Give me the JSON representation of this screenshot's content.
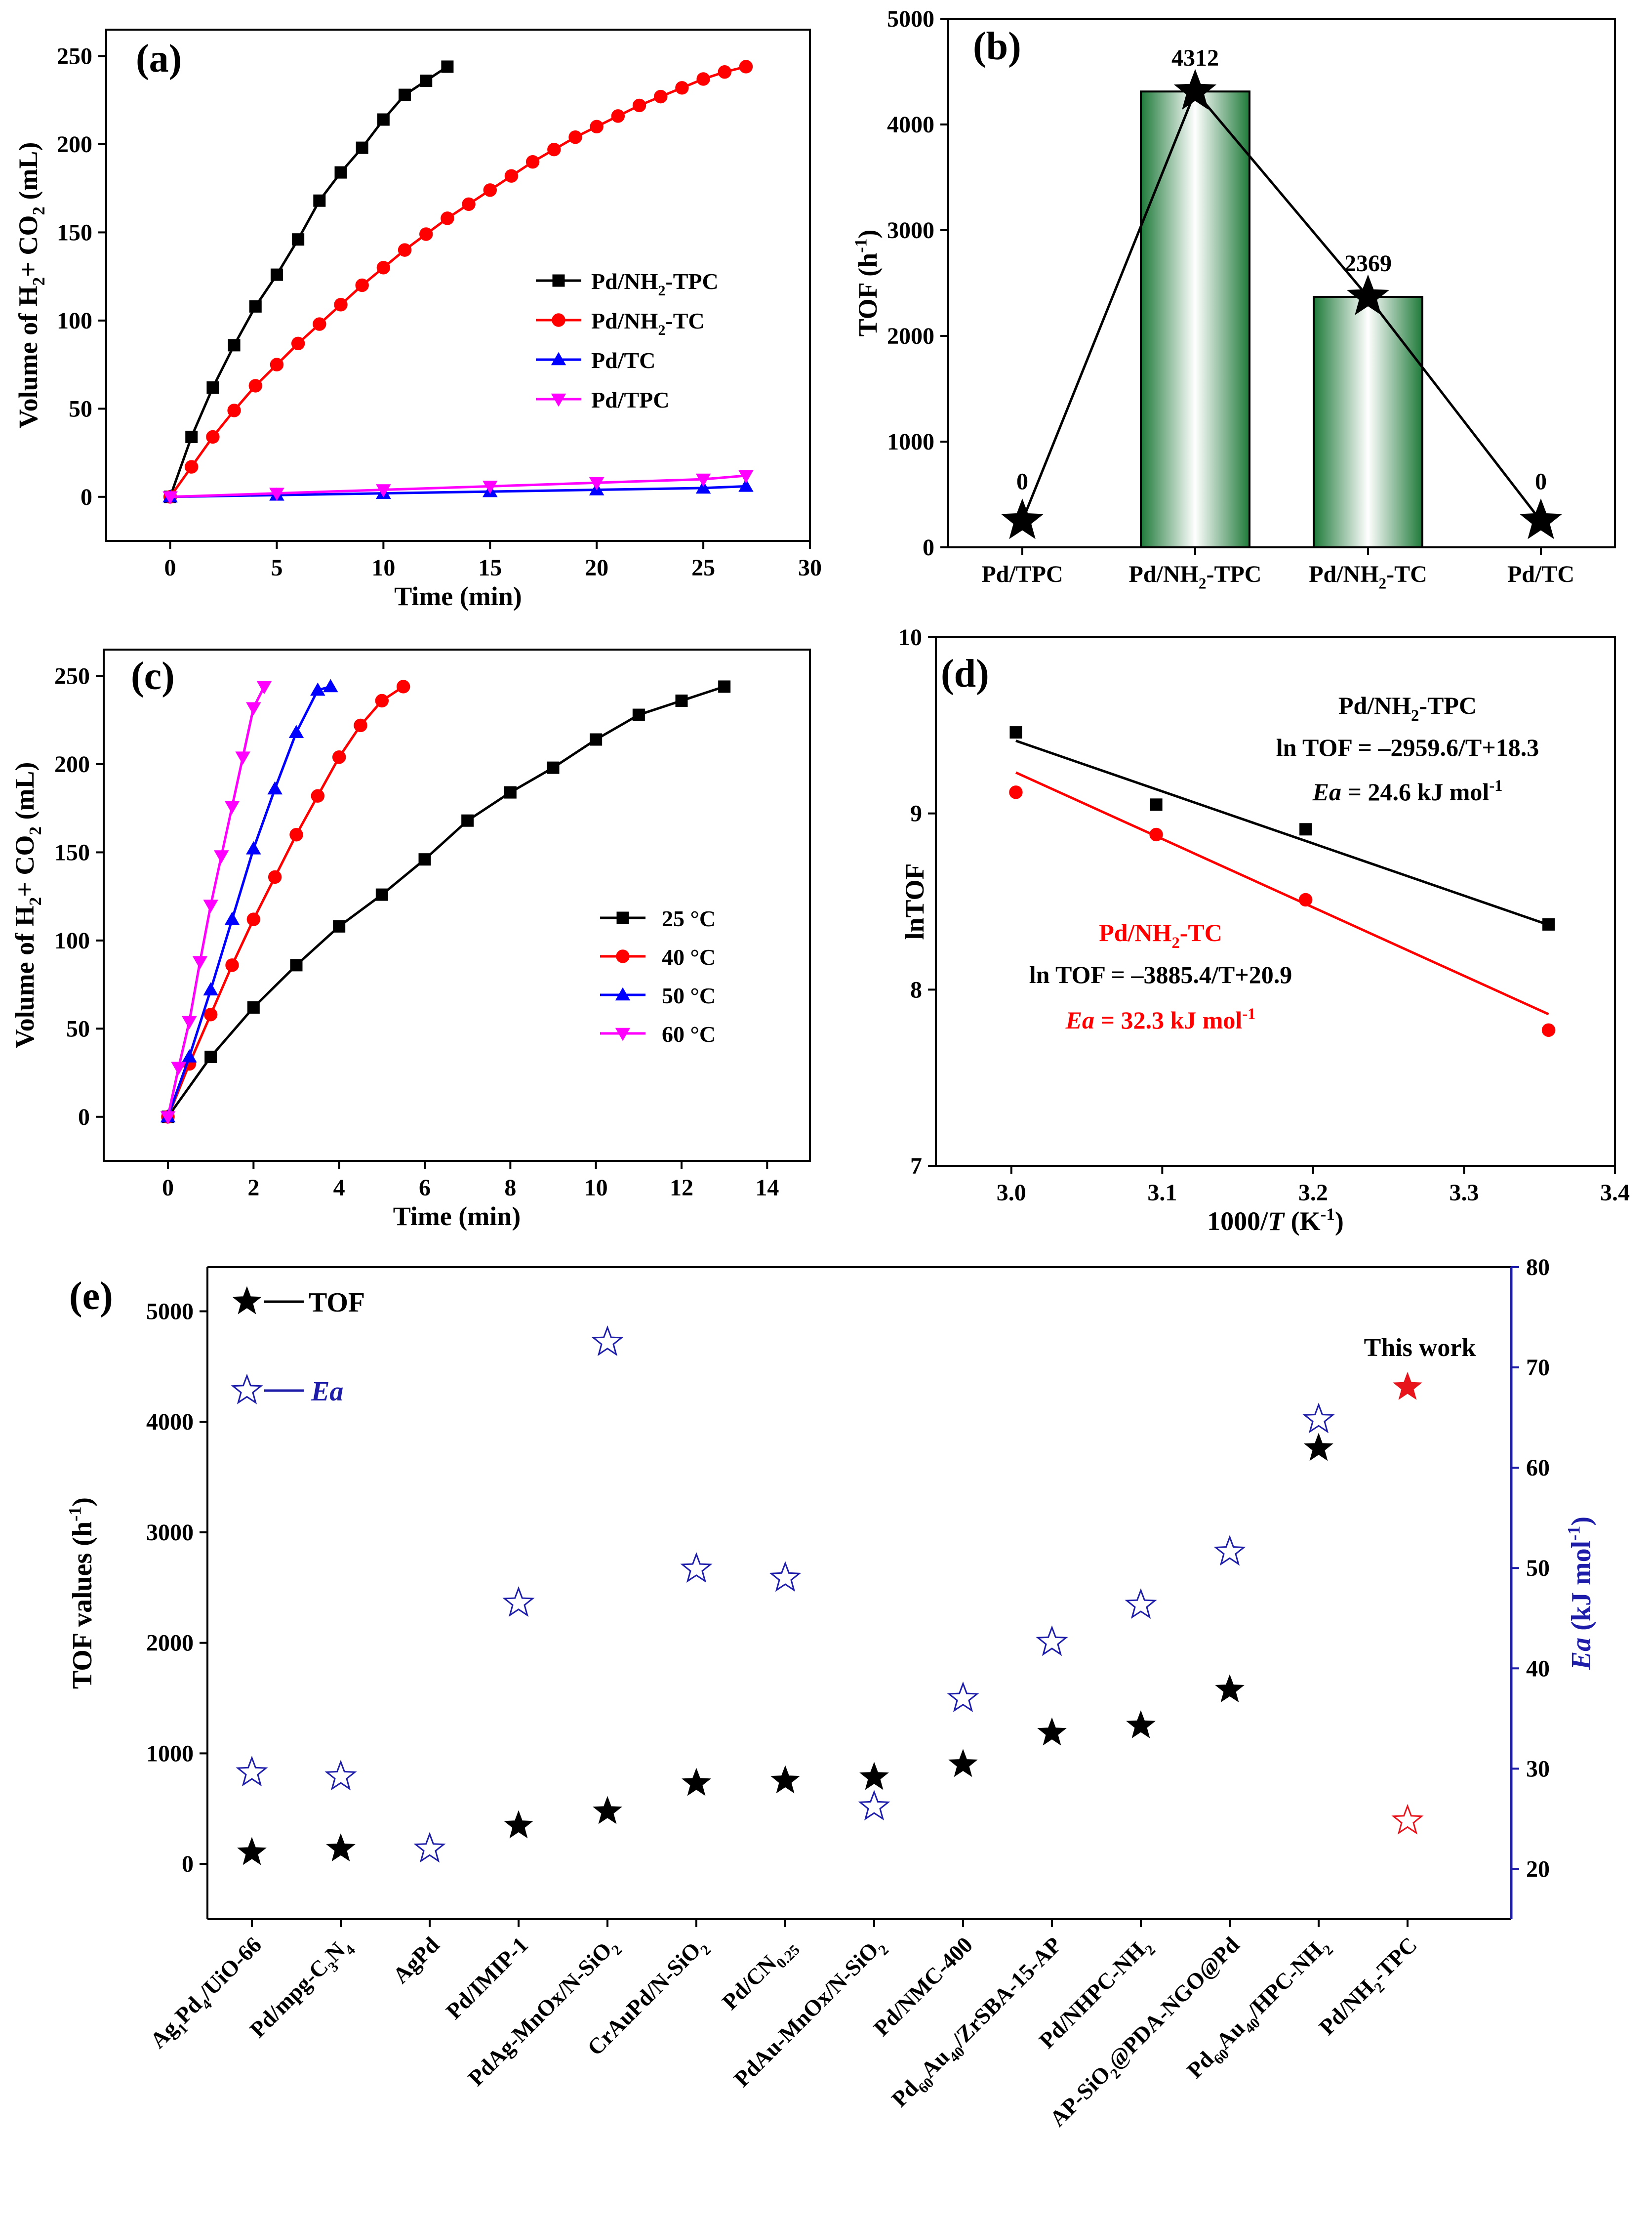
{
  "chart_data": [
    {
      "panel": "(a)",
      "type": "line",
      "xlabel": "Time (min)",
      "ylabel": "Volume of H2+ CO2 (mL)",
      "xlim": [
        -3,
        30
      ],
      "ylim": [
        -25,
        265
      ],
      "xticks": [
        0,
        5,
        10,
        15,
        20,
        25,
        30
      ],
      "yticks": [
        0,
        50,
        100,
        150,
        200,
        250
      ],
      "legend_position": "center-right",
      "series": [
        {
          "name": "Pd/NH2-TPC",
          "color": "#000000",
          "marker": "square",
          "x": [
            0,
            1,
            2,
            3,
            4,
            5,
            6,
            7,
            8,
            9,
            10,
            11,
            12,
            13
          ],
          "y": [
            0,
            34,
            62,
            86,
            108,
            126,
            146,
            168,
            184,
            198,
            214,
            228,
            236,
            244
          ]
        },
        {
          "name": "Pd/NH2-TC",
          "color": "#ff0000",
          "marker": "circle",
          "x": [
            0,
            1,
            2,
            3,
            4,
            5,
            6,
            7,
            8,
            9,
            10,
            11,
            12,
            13,
            14,
            15,
            16,
            17,
            18,
            19,
            20,
            21,
            22,
            23,
            24,
            25,
            26,
            27
          ],
          "y": [
            0,
            17,
            34,
            49,
            63,
            75,
            87,
            98,
            109,
            120,
            130,
            140,
            149,
            158,
            166,
            174,
            182,
            190,
            197,
            204,
            210,
            216,
            222,
            227,
            232,
            237,
            241,
            244
          ]
        },
        {
          "name": "Pd/TC",
          "color": "#0000ff",
          "marker": "triangle-up",
          "x": [
            0,
            5,
            10,
            15,
            20,
            25,
            27
          ],
          "y": [
            0,
            1,
            2,
            3,
            4,
            5,
            6
          ]
        },
        {
          "name": "Pd/TPC",
          "color": "#ff00ff",
          "marker": "triangle-down",
          "x": [
            0,
            5,
            10,
            15,
            20,
            25,
            27
          ],
          "y": [
            0,
            2,
            4,
            6,
            8,
            10,
            12
          ]
        }
      ]
    },
    {
      "panel": "(b)",
      "type": "bar",
      "ylabel": "TOF (h-1)",
      "categories": [
        "Pd/TPC",
        "Pd/NH2-TPC",
        "Pd/NH2-TC",
        "Pd/TC"
      ],
      "values": [
        0,
        4312,
        2369,
        0
      ],
      "marker_values": [
        250,
        4312,
        2369,
        250
      ],
      "data_labels": [
        "0",
        "4312",
        "2369",
        "0"
      ],
      "ylim": [
        0,
        5000
      ],
      "yticks": [
        0,
        1000,
        2000,
        3000,
        4000,
        5000
      ]
    },
    {
      "panel": "(c)",
      "type": "line",
      "xlabel": "Time (min)",
      "ylabel": "Volume of H2+ CO2 (mL)",
      "xlim": [
        -1.5,
        15
      ],
      "ylim": [
        -25,
        265
      ],
      "xticks": [
        0,
        2,
        4,
        6,
        8,
        10,
        12,
        14
      ],
      "yticks": [
        0,
        50,
        100,
        150,
        200,
        250
      ],
      "legend_position": "center-right",
      "series": [
        {
          "name": "25 °C",
          "color": "#000000",
          "marker": "square",
          "x": [
            0,
            1,
            2,
            3,
            4,
            5,
            6,
            7,
            8,
            9,
            10,
            11,
            12,
            13
          ],
          "y": [
            0,
            34,
            62,
            86,
            108,
            126,
            146,
            168,
            184,
            198,
            214,
            228,
            236,
            244
          ]
        },
        {
          "name": "40 °C",
          "color": "#ff0000",
          "marker": "circle",
          "x": [
            0,
            0.5,
            1,
            1.5,
            2,
            2.5,
            3,
            3.5,
            4,
            4.5,
            5,
            5.5
          ],
          "y": [
            0,
            30,
            58,
            86,
            112,
            136,
            160,
            182,
            204,
            222,
            236,
            244
          ]
        },
        {
          "name": "50 °C",
          "color": "#0000ff",
          "marker": "triangle-up",
          "x": [
            0,
            0.5,
            1,
            1.5,
            2,
            2.5,
            3,
            3.5,
            3.8
          ],
          "y": [
            0,
            34,
            72,
            112,
            152,
            186,
            218,
            242,
            244
          ]
        },
        {
          "name": "60 °C",
          "color": "#ff00ff",
          "marker": "triangle-down",
          "x": [
            0,
            0.25,
            0.5,
            0.75,
            1,
            1.25,
            1.5,
            1.75,
            2,
            2.25
          ],
          "y": [
            0,
            28,
            54,
            88,
            120,
            148,
            176,
            204,
            232,
            244
          ]
        }
      ]
    },
    {
      "panel": "(d)",
      "type": "scatter",
      "xlabel": "1000/T (K-1)",
      "ylabel": "lnTOF",
      "xlim": [
        2.95,
        3.4
      ],
      "ylim": [
        7,
        10
      ],
      "xticks": [
        3.0,
        3.1,
        3.2,
        3.3,
        3.4
      ],
      "yticks": [
        7,
        8,
        9,
        10
      ],
      "series": [
        {
          "name": "Pd/NH2-TPC",
          "color": "#000000",
          "marker": "square",
          "x": [
            3.003,
            3.096,
            3.195,
            3.356
          ],
          "y": [
            9.46,
            9.05,
            8.91,
            8.37
          ],
          "fit": {
            "slope": -2.9596,
            "intercept": 18.3,
            "x": [
              3.003,
              3.356
            ]
          },
          "equation": "ln TOF = –2959.6/T+18.3",
          "ea": "= 24.6 kJ mol"
        },
        {
          "name": "Pd/NH2-TC",
          "color": "#ff0000",
          "marker": "circle",
          "x": [
            3.003,
            3.096,
            3.195,
            3.356
          ],
          "y": [
            9.12,
            8.88,
            8.51,
            7.77
          ],
          "fit": {
            "slope": -3.8854,
            "intercept": 20.9,
            "x": [
              3.003,
              3.356
            ]
          },
          "equation": "ln TOF = –3885.4/T+20.9",
          "ea": "= 32.3 kJ mol"
        }
      ]
    },
    {
      "panel": "(e)",
      "type": "scatter",
      "ylabel_left": "TOF values (h-1)",
      "ylabel_right": "Ea (kJ mol-1)",
      "ylim_left": [
        -500,
        5400
      ],
      "ylim_right": [
        15,
        80
      ],
      "yticks_left": [
        0,
        1000,
        2000,
        3000,
        4000,
        5000
      ],
      "yticks_right": [
        20,
        30,
        40,
        50,
        60,
        70,
        80
      ],
      "categories": [
        "Ag1Pd4/UiO-66",
        "Pd/mpg-C3N4",
        "AgPd",
        "Pd/IMIP-1",
        "PdAg-MnOx/N-SiO2",
        "CrAuPd/N-SiO2",
        "Pd/CN0.25",
        "PdAu-MnOx/N-SiO2",
        "Pd/NMC-400",
        "Pd60Au40/ZrSBA-15-AP",
        "Pd/NHPC-NH2",
        "AP-SiO2@PDA-NGO@Pd",
        "Pd60Au40/HPC-NH2",
        "Pd/NH2-TPC"
      ],
      "tof": [
        103,
        136,
        null,
        345,
        474,
        729,
        752,
        783,
        900,
        1185,
        1250,
        1575,
        3760,
        4312
      ],
      "ea": [
        29.6,
        29.2,
        22.0,
        46.5,
        72.5,
        49.9,
        49.0,
        26.2,
        37.0,
        42.6,
        46.3,
        51.6,
        64.8,
        24.8
      ],
      "annotation": "This work",
      "highlight_color": "#e8141c",
      "ea_axis_color": "#1d1daa"
    }
  ]
}
